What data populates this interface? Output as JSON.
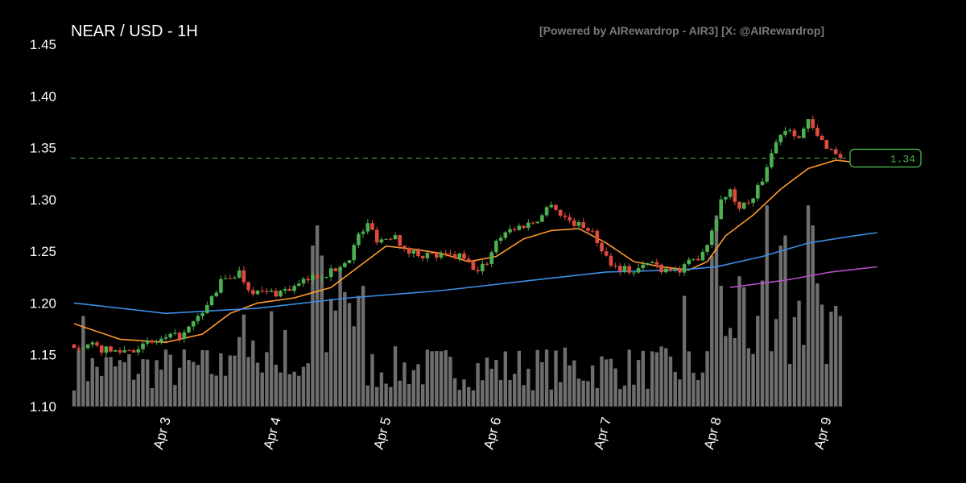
{
  "header": {
    "title": "NEAR / USD - 1H",
    "credit": "[Powered by AIRewardrop - AIR3] [X: @AIRewardrop]"
  },
  "price_tag": {
    "label": "1.34",
    "value": 1.34
  },
  "colors": {
    "background": "#000000",
    "up": "#4caf50",
    "down": "#e04b3e",
    "volume": "#6e6e6e",
    "ma_fast": "#ff9a2e",
    "ma_slow": "#3a8ee6",
    "ma_long": "#b44fc6",
    "current_line": "#4caf50"
  },
  "chart_data": {
    "type": "candlestick",
    "title": "NEAR / USD - 1H",
    "ylim": [
      1.1,
      1.45
    ],
    "yticks": [
      "1.10",
      "1.15",
      "1.20",
      "1.25",
      "1.30",
      "1.35",
      "1.40",
      "1.45"
    ],
    "x_tick_labels": [
      "Apr 3",
      "Apr 4",
      "Apr 5",
      "Apr 6",
      "Apr 7",
      "Apr 8",
      "Apr 9"
    ],
    "x_tick_hours": [
      20,
      44,
      68,
      92,
      116,
      140,
      164
    ],
    "hours_total": 167,
    "close_anchors": [
      [
        0,
        1.16
      ],
      [
        4,
        1.158
      ],
      [
        8,
        1.153
      ],
      [
        12,
        1.155
      ],
      [
        16,
        1.16
      ],
      [
        20,
        1.165
      ],
      [
        24,
        1.17
      ],
      [
        28,
        1.19
      ],
      [
        30,
        1.205
      ],
      [
        32,
        1.22
      ],
      [
        34,
        1.225
      ],
      [
        36,
        1.23
      ],
      [
        38,
        1.215
      ],
      [
        40,
        1.21
      ],
      [
        44,
        1.21
      ],
      [
        48,
        1.215
      ],
      [
        52,
        1.225
      ],
      [
        56,
        1.23
      ],
      [
        58,
        1.235
      ],
      [
        60,
        1.245
      ],
      [
        62,
        1.265
      ],
      [
        64,
        1.275
      ],
      [
        65,
        1.27
      ],
      [
        66,
        1.262
      ],
      [
        68,
        1.262
      ],
      [
        70,
        1.268
      ],
      [
        72,
        1.25
      ],
      [
        76,
        1.247
      ],
      [
        80,
        1.245
      ],
      [
        84,
        1.245
      ],
      [
        86,
        1.238
      ],
      [
        88,
        1.23
      ],
      [
        90,
        1.24
      ],
      [
        92,
        1.26
      ],
      [
        94,
        1.27
      ],
      [
        96,
        1.272
      ],
      [
        98,
        1.275
      ],
      [
        100,
        1.278
      ],
      [
        102,
        1.285
      ],
      [
        104,
        1.298
      ],
      [
        106,
        1.285
      ],
      [
        108,
        1.28
      ],
      [
        110,
        1.275
      ],
      [
        112,
        1.273
      ],
      [
        114,
        1.26
      ],
      [
        116,
        1.245
      ],
      [
        118,
        1.235
      ],
      [
        120,
        1.233
      ],
      [
        122,
        1.23
      ],
      [
        124,
        1.235
      ],
      [
        126,
        1.24
      ],
      [
        128,
        1.233
      ],
      [
        130,
        1.235
      ],
      [
        132,
        1.23
      ],
      [
        134,
        1.238
      ],
      [
        136,
        1.245
      ],
      [
        138,
        1.258
      ],
      [
        140,
        1.285
      ],
      [
        141,
        1.298
      ],
      [
        142,
        1.305
      ],
      [
        143,
        1.31
      ],
      [
        144,
        1.295
      ],
      [
        146,
        1.295
      ],
      [
        148,
        1.3
      ],
      [
        150,
        1.32
      ],
      [
        152,
        1.345
      ],
      [
        154,
        1.365
      ],
      [
        156,
        1.37
      ],
      [
        158,
        1.36
      ],
      [
        160,
        1.375
      ],
      [
        162,
        1.36
      ],
      [
        164,
        1.352
      ],
      [
        166,
        1.345
      ],
      [
        168,
        1.34
      ],
      [
        170,
        1.33
      ],
      [
        172,
        1.328
      ],
      [
        174,
        1.332
      ],
      [
        175,
        1.34
      ]
    ],
    "volume_relative": "shown as grey bars along the bottom, taller spikes near Apr 5, Apr 8 and Apr 9",
    "series": [
      {
        "name": "",
        "color_key": "ma_fast",
        "points": [
          [
            0,
            1.18
          ],
          [
            10,
            1.165
          ],
          [
            20,
            1.162
          ],
          [
            28,
            1.17
          ],
          [
            34,
            1.19
          ],
          [
            40,
            1.2
          ],
          [
            48,
            1.205
          ],
          [
            56,
            1.215
          ],
          [
            62,
            1.235
          ],
          [
            68,
            1.255
          ],
          [
            74,
            1.252
          ],
          [
            80,
            1.248
          ],
          [
            86,
            1.24
          ],
          [
            92,
            1.245
          ],
          [
            98,
            1.262
          ],
          [
            104,
            1.27
          ],
          [
            110,
            1.272
          ],
          [
            116,
            1.258
          ],
          [
            122,
            1.24
          ],
          [
            128,
            1.235
          ],
          [
            134,
            1.232
          ],
          [
            138,
            1.24
          ],
          [
            142,
            1.265
          ],
          [
            148,
            1.285
          ],
          [
            154,
            1.31
          ],
          [
            160,
            1.33
          ],
          [
            166,
            1.338
          ],
          [
            172,
            1.335
          ],
          [
            175,
            1.336
          ]
        ]
      },
      {
        "name": "",
        "color_key": "ma_slow",
        "points": [
          [
            0,
            1.2
          ],
          [
            20,
            1.19
          ],
          [
            40,
            1.195
          ],
          [
            60,
            1.205
          ],
          [
            80,
            1.212
          ],
          [
            100,
            1.222
          ],
          [
            116,
            1.23
          ],
          [
            132,
            1.232
          ],
          [
            140,
            1.235
          ],
          [
            150,
            1.245
          ],
          [
            160,
            1.258
          ],
          [
            170,
            1.265
          ],
          [
            175,
            1.268
          ]
        ]
      },
      {
        "name": "",
        "color_key": "ma_long",
        "points": [
          [
            143,
            1.215
          ],
          [
            155,
            1.222
          ],
          [
            165,
            1.23
          ],
          [
            175,
            1.235
          ]
        ]
      }
    ]
  }
}
